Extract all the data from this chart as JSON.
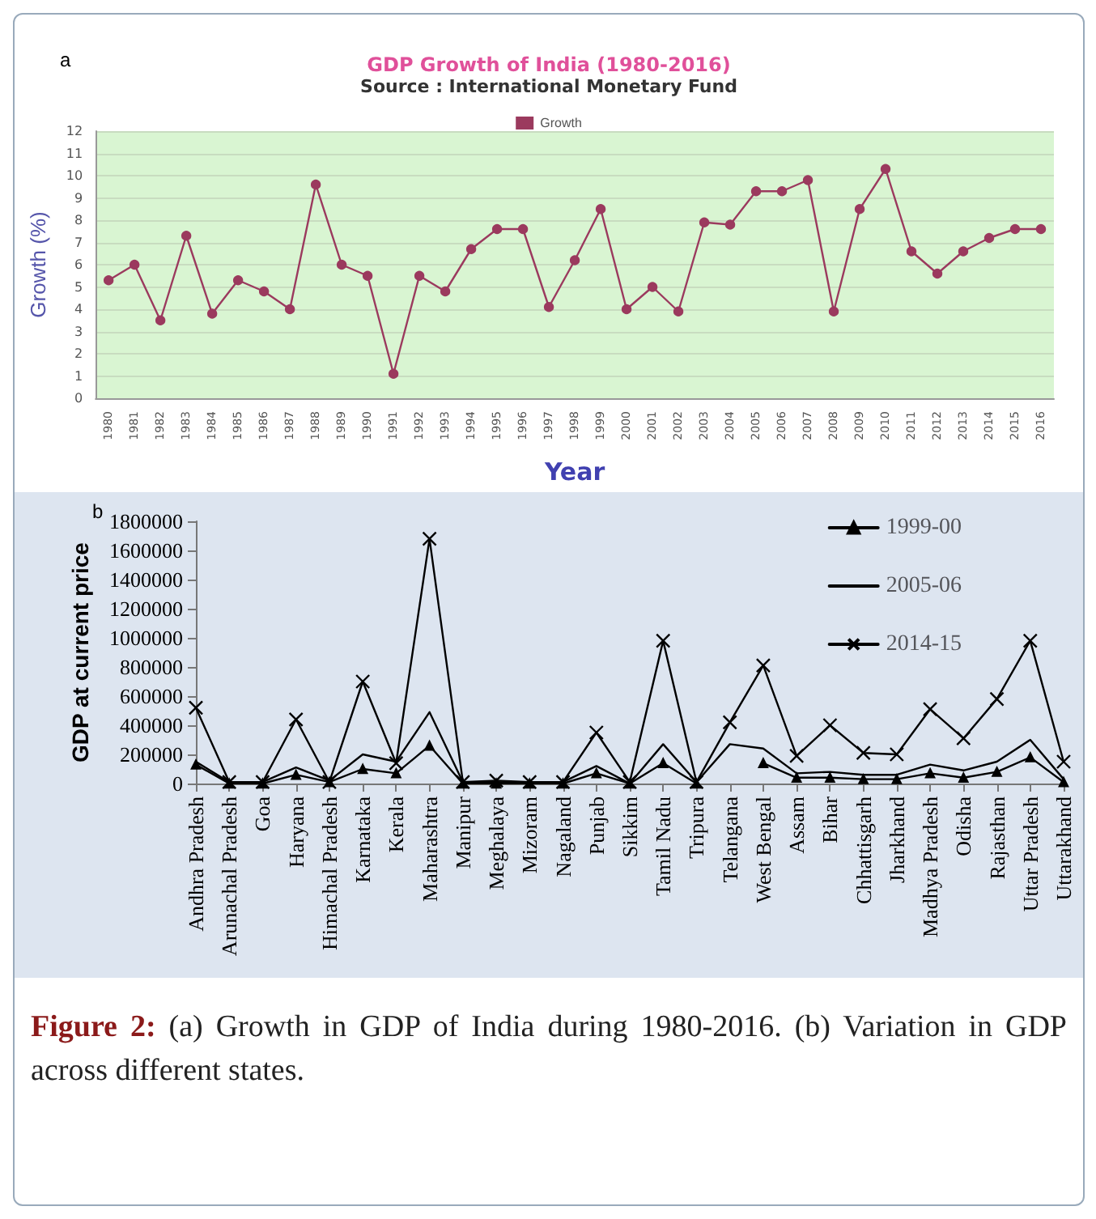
{
  "chart_data": [
    {
      "type": "line",
      "title": "GDP Growth of India (1980-2016)",
      "subtitle": "Source : International Monetary Fund",
      "xlabel": "Year",
      "ylabel": "Growth (%)",
      "annotations": [
        "a"
      ],
      "categories": [
        "1980",
        "1981",
        "1982",
        "1983",
        "1984",
        "1985",
        "1986",
        "1987",
        "1988",
        "1989",
        "1990",
        "1991",
        "1992",
        "1993",
        "1994",
        "1995",
        "1996",
        "1997",
        "1998",
        "1999",
        "2000",
        "2001",
        "2002",
        "2003",
        "2004",
        "2005",
        "2006",
        "2007",
        "2008",
        "2009",
        "2010",
        "2011",
        "2012",
        "2013",
        "2014",
        "2015",
        "2016"
      ],
      "series": [
        {
          "name": "Growth",
          "color": "#9b3a5e",
          "marker": "circle",
          "values": [
            5.3,
            6.0,
            3.5,
            7.3,
            3.8,
            5.3,
            4.8,
            4.0,
            9.6,
            6.0,
            5.5,
            1.1,
            5.5,
            4.8,
            6.7,
            7.6,
            7.6,
            4.1,
            6.2,
            8.5,
            4.0,
            5.0,
            3.9,
            7.9,
            7.8,
            9.3,
            9.3,
            9.8,
            3.9,
            8.5,
            10.3,
            6.6,
            5.6,
            6.6,
            7.2,
            7.6,
            7.6
          ]
        }
      ],
      "ylim": [
        0,
        12
      ],
      "yticks": [
        0,
        1,
        2,
        3,
        4,
        5,
        6,
        7,
        8,
        9,
        10,
        11,
        12
      ],
      "grid": "y",
      "legend": "top",
      "line_style": "solid"
    },
    {
      "type": "line",
      "ylabel": "GDP at current price",
      "annotations": [
        "b",
        "Figure 2: (a) Growth in GDP of India during 1980-2016. (b) Variation in GDP across different states."
      ],
      "categories": [
        "Andhra Pradesh",
        "Arunachal Pradesh",
        "Goa",
        "Haryana",
        "Himachal Pradesh",
        "Karnataka",
        "Kerala",
        "Maharashtra",
        "Manipur",
        "Meghalaya",
        "Mizoram",
        "Nagaland",
        "Punjab",
        "Sikkim",
        "Tamil Nadu",
        "Tripura",
        "Telangana",
        "West Bengal",
        "Assam",
        "Bihar",
        "Chhattisgarh",
        "Jharkhand",
        "Madhya Pradesh",
        "Odisha",
        "Rajasthan",
        "Uttar Pradesh",
        "Uttarakhand"
      ],
      "series": [
        {
          "name": "1999-00",
          "color": "#000000",
          "marker": "triangle",
          "values": [
            130000,
            0,
            0,
            60000,
            10000,
            100000,
            70000,
            260000,
            0,
            0,
            0,
            0,
            70000,
            0,
            140000,
            0,
            null,
            140000,
            40000,
            40000,
            30000,
            30000,
            70000,
            40000,
            80000,
            180000,
            10000
          ]
        },
        {
          "name": "2005-06",
          "color": "#000000",
          "marker": "none",
          "values": [
            150000,
            10000,
            10000,
            110000,
            20000,
            200000,
            150000,
            490000,
            10000,
            10000,
            0,
            10000,
            120000,
            0,
            270000,
            10000,
            270000,
            240000,
            70000,
            80000,
            60000,
            60000,
            130000,
            90000,
            150000,
            300000,
            30000
          ]
        },
        {
          "name": "2014-15",
          "color": "#000000",
          "marker": "cross",
          "values": [
            520000,
            10000,
            10000,
            440000,
            10000,
            700000,
            140000,
            1680000,
            10000,
            20000,
            10000,
            10000,
            350000,
            10000,
            980000,
            10000,
            420000,
            810000,
            190000,
            400000,
            210000,
            200000,
            510000,
            310000,
            580000,
            980000,
            150000
          ]
        }
      ],
      "ylim": [
        0,
        1800000
      ],
      "yticks": [
        0,
        200000,
        400000,
        600000,
        800000,
        1000000,
        1200000,
        1400000,
        1600000,
        1800000
      ],
      "grid": false,
      "legend": "top right",
      "line_style": "solid"
    }
  ]
}
